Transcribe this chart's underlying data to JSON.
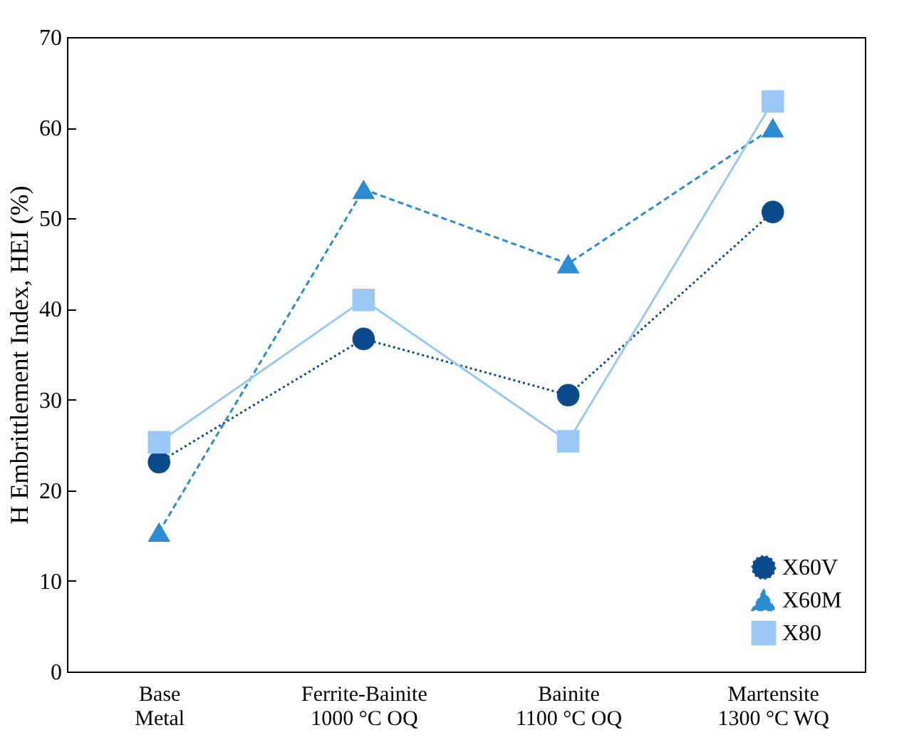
{
  "chart_data": {
    "type": "line",
    "ylabel": "H Embrittlement Index, HEI (%)",
    "categories": [
      "Base\nMetal",
      "Ferrite-Bainite\n1000 °C OQ",
      "Bainite\n1100 °C OQ",
      "Martensite\n1300 °C WQ"
    ],
    "series": [
      {
        "name": "X60V",
        "color": "#0b4a8c",
        "marker": "circle",
        "line_style": "dotted",
        "values": [
          23.1,
          36.7,
          30.5,
          50.7
        ]
      },
      {
        "name": "X60M",
        "color": "#2b8bd3",
        "marker": "triangle",
        "line_style": "dashed",
        "values": [
          15.4,
          53.2,
          45.0,
          60.0
        ]
      },
      {
        "name": "X80",
        "color": "#9ac8f5",
        "marker": "square",
        "line_style": "solid",
        "values": [
          25.3,
          41.0,
          25.4,
          62.9
        ]
      }
    ],
    "ylim": [
      0,
      70
    ],
    "yticks": [
      0,
      10,
      20,
      30,
      40,
      50,
      60,
      70
    ],
    "legend": "bottom right"
  }
}
